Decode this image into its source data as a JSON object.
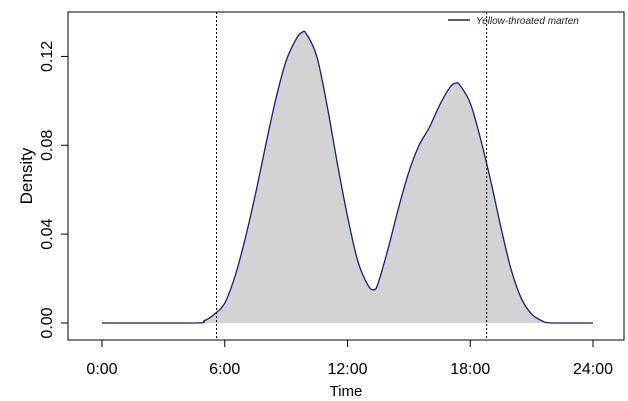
{
  "chart_data": {
    "type": "area",
    "title": "",
    "xlabel": "Time",
    "ylabel": "Density",
    "xlim": [
      0,
      24
    ],
    "ylim": [
      0,
      0.14
    ],
    "x_ticks": [
      {
        "value": 0,
        "label": "0:00"
      },
      {
        "value": 6,
        "label": "6:00"
      },
      {
        "value": 12,
        "label": "12:00"
      },
      {
        "value": 18,
        "label": "18:00"
      },
      {
        "value": 24,
        "label": "24:00"
      }
    ],
    "y_ticks": [
      {
        "value": 0,
        "label": "0.00"
      },
      {
        "value": 0.04,
        "label": "0.04"
      },
      {
        "value": 0.08,
        "label": "0.08"
      },
      {
        "value": 0.12,
        "label": "0.12"
      }
    ],
    "grid": false,
    "legend_position": "top-right",
    "reference_lines_x": [
      5.6,
      18.8
    ],
    "series": [
      {
        "name": "Yellow-throated marten",
        "line_color": "#1a1a80",
        "fill_color": "#d3d3d3",
        "x": [
          0,
          4.5,
          5.0,
          5.5,
          6.0,
          6.5,
          7.0,
          7.5,
          8.0,
          8.5,
          9.0,
          9.5,
          9.8,
          10.0,
          10.5,
          11.0,
          11.5,
          12.0,
          12.5,
          13.0,
          13.3,
          13.5,
          14.0,
          14.5,
          15.0,
          15.5,
          16.0,
          16.5,
          17.0,
          17.3,
          17.5,
          18.0,
          18.5,
          19.0,
          19.5,
          20.0,
          20.5,
          21.0,
          21.5,
          22.0,
          24.0
        ],
        "y": [
          0,
          0,
          0.001,
          0.004,
          0.009,
          0.021,
          0.038,
          0.058,
          0.08,
          0.101,
          0.118,
          0.128,
          0.131,
          0.13,
          0.12,
          0.098,
          0.072,
          0.048,
          0.028,
          0.017,
          0.015,
          0.018,
          0.034,
          0.052,
          0.068,
          0.08,
          0.088,
          0.098,
          0.106,
          0.108,
          0.107,
          0.099,
          0.083,
          0.064,
          0.043,
          0.024,
          0.011,
          0.004,
          0.001,
          0,
          0
        ]
      }
    ]
  }
}
